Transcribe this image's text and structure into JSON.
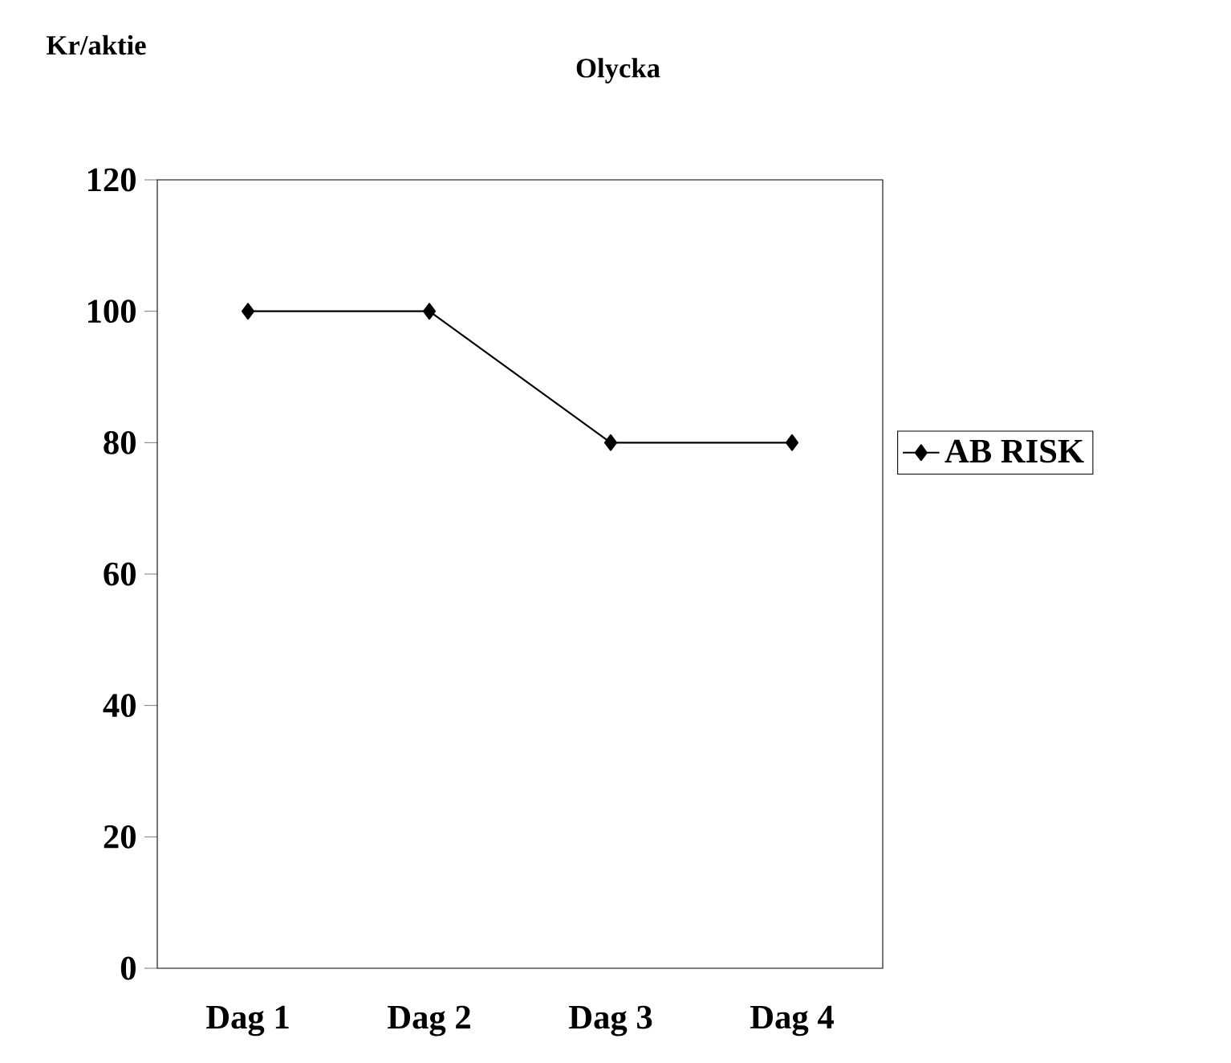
{
  "chart_data": {
    "type": "line",
    "title": "Olycka",
    "ylabel": "Kr/aktie",
    "categories": [
      "Dag 1",
      "Dag 2",
      "Dag 3",
      "Dag 4"
    ],
    "series": [
      {
        "name": "AB RISK",
        "color": "#000000",
        "values": [
          100,
          100,
          80,
          80
        ]
      }
    ],
    "ylim": [
      0,
      120
    ],
    "yticks": [
      0,
      20,
      40,
      60,
      80,
      100,
      120
    ],
    "grid": false,
    "legend": "right",
    "marker": "diamond",
    "line_style": "solid"
  }
}
